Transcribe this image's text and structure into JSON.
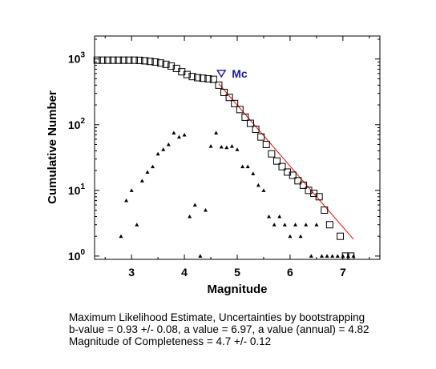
{
  "chart_data": {
    "type": "scatter",
    "xlabel": "Magnitude",
    "ylabel": "Cumulative Number",
    "xlim": [
      2.3,
      7.7
    ],
    "ylim_log10": [
      -0.05,
      3.35
    ],
    "y_scale": "log",
    "x_ticks": [
      3,
      4,
      5,
      6,
      7
    ],
    "y_ticks": [
      {
        "base": "10",
        "exp": "0",
        "value": 1
      },
      {
        "base": "10",
        "exp": "1",
        "value": 10
      },
      {
        "base": "10",
        "exp": "2",
        "value": 100
      },
      {
        "base": "10",
        "exp": "3",
        "value": 1000
      }
    ],
    "grid": false,
    "cumulative": {
      "marker": "square",
      "points": [
        [
          2.35,
          960
        ],
        [
          2.45,
          960
        ],
        [
          2.55,
          960
        ],
        [
          2.65,
          960
        ],
        [
          2.75,
          960
        ],
        [
          2.85,
          960
        ],
        [
          2.95,
          960
        ],
        [
          3.05,
          960
        ],
        [
          3.15,
          955
        ],
        [
          3.25,
          940
        ],
        [
          3.35,
          920
        ],
        [
          3.45,
          900
        ],
        [
          3.55,
          870
        ],
        [
          3.65,
          830
        ],
        [
          3.75,
          780
        ],
        [
          3.85,
          720
        ],
        [
          3.95,
          640
        ],
        [
          4.05,
          580
        ],
        [
          4.15,
          540
        ],
        [
          4.25,
          520
        ],
        [
          4.35,
          510
        ],
        [
          4.45,
          500
        ],
        [
          4.55,
          490
        ],
        [
          4.65,
          400
        ],
        [
          4.75,
          310
        ],
        [
          4.85,
          260
        ],
        [
          4.95,
          210
        ],
        [
          5.05,
          170
        ],
        [
          5.15,
          130
        ],
        [
          5.25,
          105
        ],
        [
          5.35,
          85
        ],
        [
          5.45,
          65
        ],
        [
          5.55,
          50
        ],
        [
          5.65,
          36
        ],
        [
          5.75,
          28
        ],
        [
          5.85,
          23
        ],
        [
          5.95,
          19
        ],
        [
          6.05,
          17
        ],
        [
          6.15,
          14
        ],
        [
          6.25,
          12
        ],
        [
          6.35,
          10
        ],
        [
          6.45,
          9
        ],
        [
          6.55,
          8
        ],
        [
          6.65,
          5
        ],
        [
          6.75,
          3
        ],
        [
          6.95,
          2
        ],
        [
          7.05,
          1
        ],
        [
          7.15,
          1
        ]
      ]
    },
    "non_cumulative": {
      "marker": "triangle",
      "points": [
        [
          2.8,
          2
        ],
        [
          2.9,
          7
        ],
        [
          3.0,
          10
        ],
        [
          3.1,
          3
        ],
        [
          3.2,
          14
        ],
        [
          3.3,
          19
        ],
        [
          3.4,
          23
        ],
        [
          3.5,
          36
        ],
        [
          3.6,
          42
        ],
        [
          3.7,
          50
        ],
        [
          3.8,
          75
        ],
        [
          3.9,
          65
        ],
        [
          4.0,
          70
        ],
        [
          4.1,
          4
        ],
        [
          4.2,
          6
        ],
        [
          4.3,
          1
        ],
        [
          4.4,
          5
        ],
        [
          4.5,
          47
        ],
        [
          4.6,
          75
        ],
        [
          4.7,
          46
        ],
        [
          4.8,
          45
        ],
        [
          4.9,
          47
        ],
        [
          5.0,
          42
        ],
        [
          5.1,
          23
        ],
        [
          5.2,
          23
        ],
        [
          5.3,
          18
        ],
        [
          5.4,
          12
        ],
        [
          5.5,
          10
        ],
        [
          5.6,
          4
        ],
        [
          5.7,
          3
        ],
        [
          5.8,
          4
        ],
        [
          5.9,
          3
        ],
        [
          6.0,
          2
        ],
        [
          6.1,
          3
        ],
        [
          6.2,
          2
        ],
        [
          6.3,
          3
        ],
        [
          6.4,
          1
        ],
        [
          6.5,
          3
        ],
        [
          6.6,
          1
        ],
        [
          6.7,
          1
        ],
        [
          6.8,
          1
        ],
        [
          6.9,
          1
        ],
        [
          7.0,
          1
        ],
        [
          7.1,
          1
        ],
        [
          7.2,
          1
        ]
      ]
    },
    "fit_line": {
      "color": "#ff0000",
      "from": [
        4.65,
        420
      ],
      "to": [
        7.2,
        1.8
      ]
    },
    "mc": {
      "label": "Mc",
      "x": 4.7,
      "y": 600,
      "color": "#1a1aa6"
    }
  },
  "caption": {
    "line1": "Maximum Likelihood Estimate, Uncertainties by bootstrapping",
    "line2": "b-value = 0.93 +/- 0.08,  a value = 6.97,   a value (annual) = 4.82",
    "line3": "Magnitude of Completeness = 4.7 +/- 0.12"
  }
}
